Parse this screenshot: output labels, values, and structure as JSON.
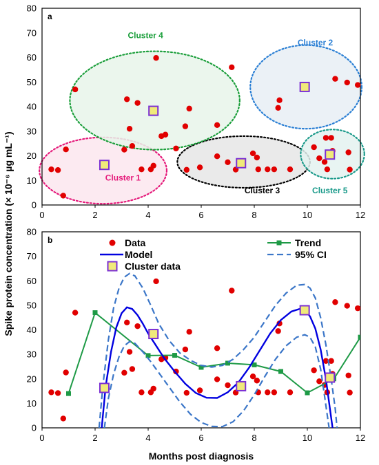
{
  "chart_data": [
    {
      "type": "scatter",
      "panel": "a",
      "xlim": [
        0,
        12
      ],
      "ylim": [
        0,
        80
      ],
      "xticks": [
        0,
        2,
        4,
        6,
        8,
        10,
        12
      ],
      "yticks": [
        0,
        10,
        20,
        30,
        40,
        50,
        60,
        70,
        80
      ],
      "data_points": [
        [
          0.35,
          14.5
        ],
        [
          0.6,
          14.2
        ],
        [
          0.8,
          3.8
        ],
        [
          0.9,
          22.6
        ],
        [
          1.25,
          47
        ],
        [
          3.1,
          22.5
        ],
        [
          3.2,
          43
        ],
        [
          3.3,
          31
        ],
        [
          3.4,
          24
        ],
        [
          3.6,
          41.5
        ],
        [
          3.75,
          14.5
        ],
        [
          4.1,
          14.5
        ],
        [
          4.2,
          16
        ],
        [
          4.3,
          59.8
        ],
        [
          4.5,
          28
        ],
        [
          4.65,
          28.6
        ],
        [
          5.05,
          23
        ],
        [
          5.4,
          32
        ],
        [
          5.45,
          14.3
        ],
        [
          5.55,
          39.2
        ],
        [
          5.95,
          15.3
        ],
        [
          6.6,
          32.5
        ],
        [
          6.6,
          19.8
        ],
        [
          7.0,
          17.4
        ],
        [
          7.15,
          56
        ],
        [
          7.3,
          14.4
        ],
        [
          7.5,
          17
        ],
        [
          7.95,
          21
        ],
        [
          8.1,
          19.3
        ],
        [
          8.15,
          14.5
        ],
        [
          8.5,
          14.5
        ],
        [
          8.75,
          14.5
        ],
        [
          8.9,
          39.5
        ],
        [
          8.95,
          42.6
        ],
        [
          9.35,
          14.5
        ],
        [
          10.25,
          23.5
        ],
        [
          10.45,
          19
        ],
        [
          10.65,
          17.5
        ],
        [
          10.7,
          27.3
        ],
        [
          10.75,
          14.5
        ],
        [
          10.9,
          27.3
        ],
        [
          10.95,
          22
        ],
        [
          11.05,
          51.3
        ],
        [
          11.5,
          49.8
        ],
        [
          11.55,
          21.4
        ],
        [
          11.6,
          14.4
        ],
        [
          11.9,
          48.8
        ]
      ],
      "clusters": [
        {
          "label": "Cluster 1",
          "center": [
            2.35,
            16.3
          ],
          "color": "#e5197a",
          "fill": "#fbe6ef",
          "ellipse": {
            "cx": 2.3,
            "cy": 14,
            "rx": 2.4,
            "ry": 13.5
          },
          "label_at": [
            3.05,
            10
          ]
        },
        {
          "label": "Cluster 2",
          "center": [
            9.9,
            48
          ],
          "color": "#2a7fd4",
          "fill": "#e8eff5",
          "ellipse": {
            "cx": 9.95,
            "cy": 48,
            "rx": 2.1,
            "ry": 17
          },
          "label_at": [
            10.3,
            80
          ]
        },
        {
          "label": "Cluster 3",
          "center": [
            7.5,
            17
          ],
          "color": "#000000",
          "fill": "#e6e6e6",
          "ellipse": {
            "cx": 7.6,
            "cy": 17.5,
            "rx": 2.5,
            "ry": 10.5
          },
          "label_at": [
            8.3,
            4.8
          ]
        },
        {
          "label": "Cluster 4",
          "center": [
            4.2,
            38.3
          ],
          "color": "#1a9e3a",
          "fill": "#e8f4ea",
          "ellipse": {
            "cx": 4.25,
            "cy": 42.5,
            "rx": 3.2,
            "ry": 20
          },
          "label_at": [
            3.9,
            70
          ]
        },
        {
          "label": "Cluster 5",
          "center": [
            10.85,
            20.5
          ],
          "color": "#1a9a8a",
          "fill": "#e4f2f0",
          "ellipse": {
            "cx": 10.95,
            "cy": 20.7,
            "rx": 1.2,
            "ry": 10
          },
          "label_at": [
            10.85,
            4.8
          ]
        }
      ]
    },
    {
      "type": "line",
      "panel": "b",
      "xlabel": "Months post diagnosis",
      "xlim": [
        0,
        12
      ],
      "ylim": [
        0,
        80
      ],
      "xticks": [
        0,
        2,
        4,
        6,
        8,
        10,
        12
      ],
      "yticks": [
        0,
        10,
        20,
        30,
        40,
        50,
        60,
        70,
        80
      ],
      "series": [
        {
          "name": "Data",
          "kind": "scatter",
          "color": "#e10000",
          "points": [
            [
              0.35,
              14.5
            ],
            [
              0.6,
              14.2
            ],
            [
              0.8,
              3.8
            ],
            [
              0.9,
              22.6
            ],
            [
              1.25,
              47
            ],
            [
              3.1,
              22.5
            ],
            [
              3.2,
              43
            ],
            [
              3.3,
              31
            ],
            [
              3.4,
              24
            ],
            [
              3.6,
              41.5
            ],
            [
              3.75,
              14.5
            ],
            [
              4.1,
              14.5
            ],
            [
              4.2,
              16
            ],
            [
              4.3,
              59.8
            ],
            [
              4.5,
              28
            ],
            [
              4.65,
              28.6
            ],
            [
              5.05,
              23
            ],
            [
              5.4,
              32
            ],
            [
              5.45,
              14.3
            ],
            [
              5.55,
              39.2
            ],
            [
              5.95,
              15.3
            ],
            [
              6.6,
              32.5
            ],
            [
              6.6,
              19.8
            ],
            [
              7.0,
              17.4
            ],
            [
              7.15,
              56
            ],
            [
              7.3,
              14.4
            ],
            [
              7.5,
              17
            ],
            [
              7.95,
              21
            ],
            [
              8.1,
              19.3
            ],
            [
              8.15,
              14.5
            ],
            [
              8.5,
              14.5
            ],
            [
              8.75,
              14.5
            ],
            [
              8.9,
              39.5
            ],
            [
              8.95,
              42.6
            ],
            [
              9.35,
              14.5
            ],
            [
              10.25,
              23.5
            ],
            [
              10.45,
              19
            ],
            [
              10.65,
              17.5
            ],
            [
              10.7,
              27.3
            ],
            [
              10.75,
              14.5
            ],
            [
              10.9,
              27.3
            ],
            [
              10.95,
              22
            ],
            [
              11.05,
              51.3
            ],
            [
              11.5,
              49.8
            ],
            [
              11.55,
              21.4
            ],
            [
              11.6,
              14.4
            ],
            [
              11.9,
              48.8
            ]
          ]
        },
        {
          "name": "Trend",
          "kind": "line-marker",
          "color": "#1e9a46",
          "points": [
            [
              1,
              14
            ],
            [
              2,
              47
            ],
            [
              4,
              29.5
            ],
            [
              5,
              29.6
            ],
            [
              6,
              24.7
            ],
            [
              7,
              26.4
            ],
            [
              8,
              25.7
            ],
            [
              9,
              23
            ],
            [
              10,
              14.3
            ],
            [
              11,
              20
            ],
            [
              12,
              37
            ]
          ]
        },
        {
          "name": "Model",
          "kind": "line",
          "color": "#0000e0",
          "points": [
            [
              2.25,
              0
            ],
            [
              2.4,
              17
            ],
            [
              2.6,
              31
            ],
            [
              2.8,
              41
            ],
            [
              3.0,
              46.8
            ],
            [
              3.2,
              49.2
            ],
            [
              3.4,
              48.5
            ],
            [
              3.6,
              46
            ],
            [
              3.8,
              42.5
            ],
            [
              4.0,
              38.5
            ],
            [
              4.3,
              33.5
            ],
            [
              4.6,
              28.5
            ],
            [
              5.0,
              23
            ],
            [
              5.4,
              18
            ],
            [
              5.8,
              14.2
            ],
            [
              6.2,
              12.3
            ],
            [
              6.6,
              12.2
            ],
            [
              7.0,
              14.5
            ],
            [
              7.4,
              18.5
            ],
            [
              7.8,
              24.5
            ],
            [
              8.2,
              31.5
            ],
            [
              8.6,
              38.5
            ],
            [
              9.0,
              44
            ],
            [
              9.4,
              47.5
            ],
            [
              9.7,
              48.5
            ],
            [
              9.9,
              48
            ],
            [
              10.1,
              45.5
            ],
            [
              10.3,
              40.5
            ],
            [
              10.5,
              32
            ],
            [
              10.7,
              20
            ],
            [
              10.85,
              8
            ],
            [
              10.95,
              0
            ]
          ]
        },
        {
          "name": "95% CI",
          "kind": "dashed",
          "color": "#3b76c8",
          "upper": [
            [
              2.15,
              0
            ],
            [
              2.3,
              18
            ],
            [
              2.5,
              36
            ],
            [
              2.7,
              49
            ],
            [
              2.9,
              57
            ],
            [
              3.1,
              61.5
            ],
            [
              3.3,
              63
            ],
            [
              3.5,
              62
            ],
            [
              3.8,
              57
            ],
            [
              4.1,
              50
            ],
            [
              4.4,
              42.5
            ],
            [
              4.8,
              35.5
            ],
            [
              5.2,
              30.5
            ],
            [
              5.6,
              27.5
            ],
            [
              6.0,
              25.5
            ],
            [
              6.4,
              24.8
            ],
            [
              6.8,
              25.5
            ],
            [
              7.2,
              28
            ],
            [
              7.6,
              32
            ],
            [
              8.0,
              37
            ],
            [
              8.4,
              43.5
            ],
            [
              8.8,
              50
            ],
            [
              9.2,
              55
            ],
            [
              9.6,
              58.2
            ],
            [
              9.9,
              58.5
            ],
            [
              10.1,
              57
            ],
            [
              10.3,
              53
            ],
            [
              10.5,
              45
            ],
            [
              10.7,
              34
            ],
            [
              10.9,
              20
            ],
            [
              11.05,
              8
            ],
            [
              11.12,
              0
            ]
          ],
          "lower": [
            [
              2.35,
              0
            ],
            [
              2.5,
              12
            ],
            [
              2.7,
              22
            ],
            [
              2.9,
              29
            ],
            [
              3.1,
              33.5
            ],
            [
              3.3,
              35.2
            ],
            [
              3.5,
              34.5
            ],
            [
              3.8,
              31
            ],
            [
              4.1,
              27
            ],
            [
              4.4,
              22.5
            ],
            [
              4.8,
              16.5
            ],
            [
              5.2,
              10.5
            ],
            [
              5.6,
              5.5
            ],
            [
              6.0,
              2.2
            ],
            [
              6.4,
              0.6
            ],
            [
              6.8,
              0.5
            ],
            [
              7.2,
              2.5
            ],
            [
              7.6,
              7
            ],
            [
              8.0,
              13.5
            ],
            [
              8.4,
              21
            ],
            [
              8.8,
              28
            ],
            [
              9.2,
              33.5
            ],
            [
              9.6,
              37
            ],
            [
              9.9,
              38
            ],
            [
              10.1,
              37
            ],
            [
              10.3,
              33
            ],
            [
              10.5,
              24
            ],
            [
              10.65,
              13
            ],
            [
              10.78,
              3
            ],
            [
              10.82,
              0
            ]
          ]
        },
        {
          "name": "Cluster data",
          "kind": "square",
          "color": "#7b2fd4",
          "fill": "#f0ea7a",
          "points": [
            [
              2.35,
              16.3
            ],
            [
              4.2,
              38.3
            ],
            [
              7.5,
              17
            ],
            [
              9.9,
              48
            ],
            [
              10.85,
              20.5
            ]
          ]
        }
      ]
    }
  ],
  "shared_ylabel": "Spike protein concentration (× 10⁻⁶ µg mL⁻¹)",
  "colors": {
    "data_point": "#e10000",
    "square_edge": "#7b2fd4",
    "square_fill": "#f0ea7a"
  }
}
